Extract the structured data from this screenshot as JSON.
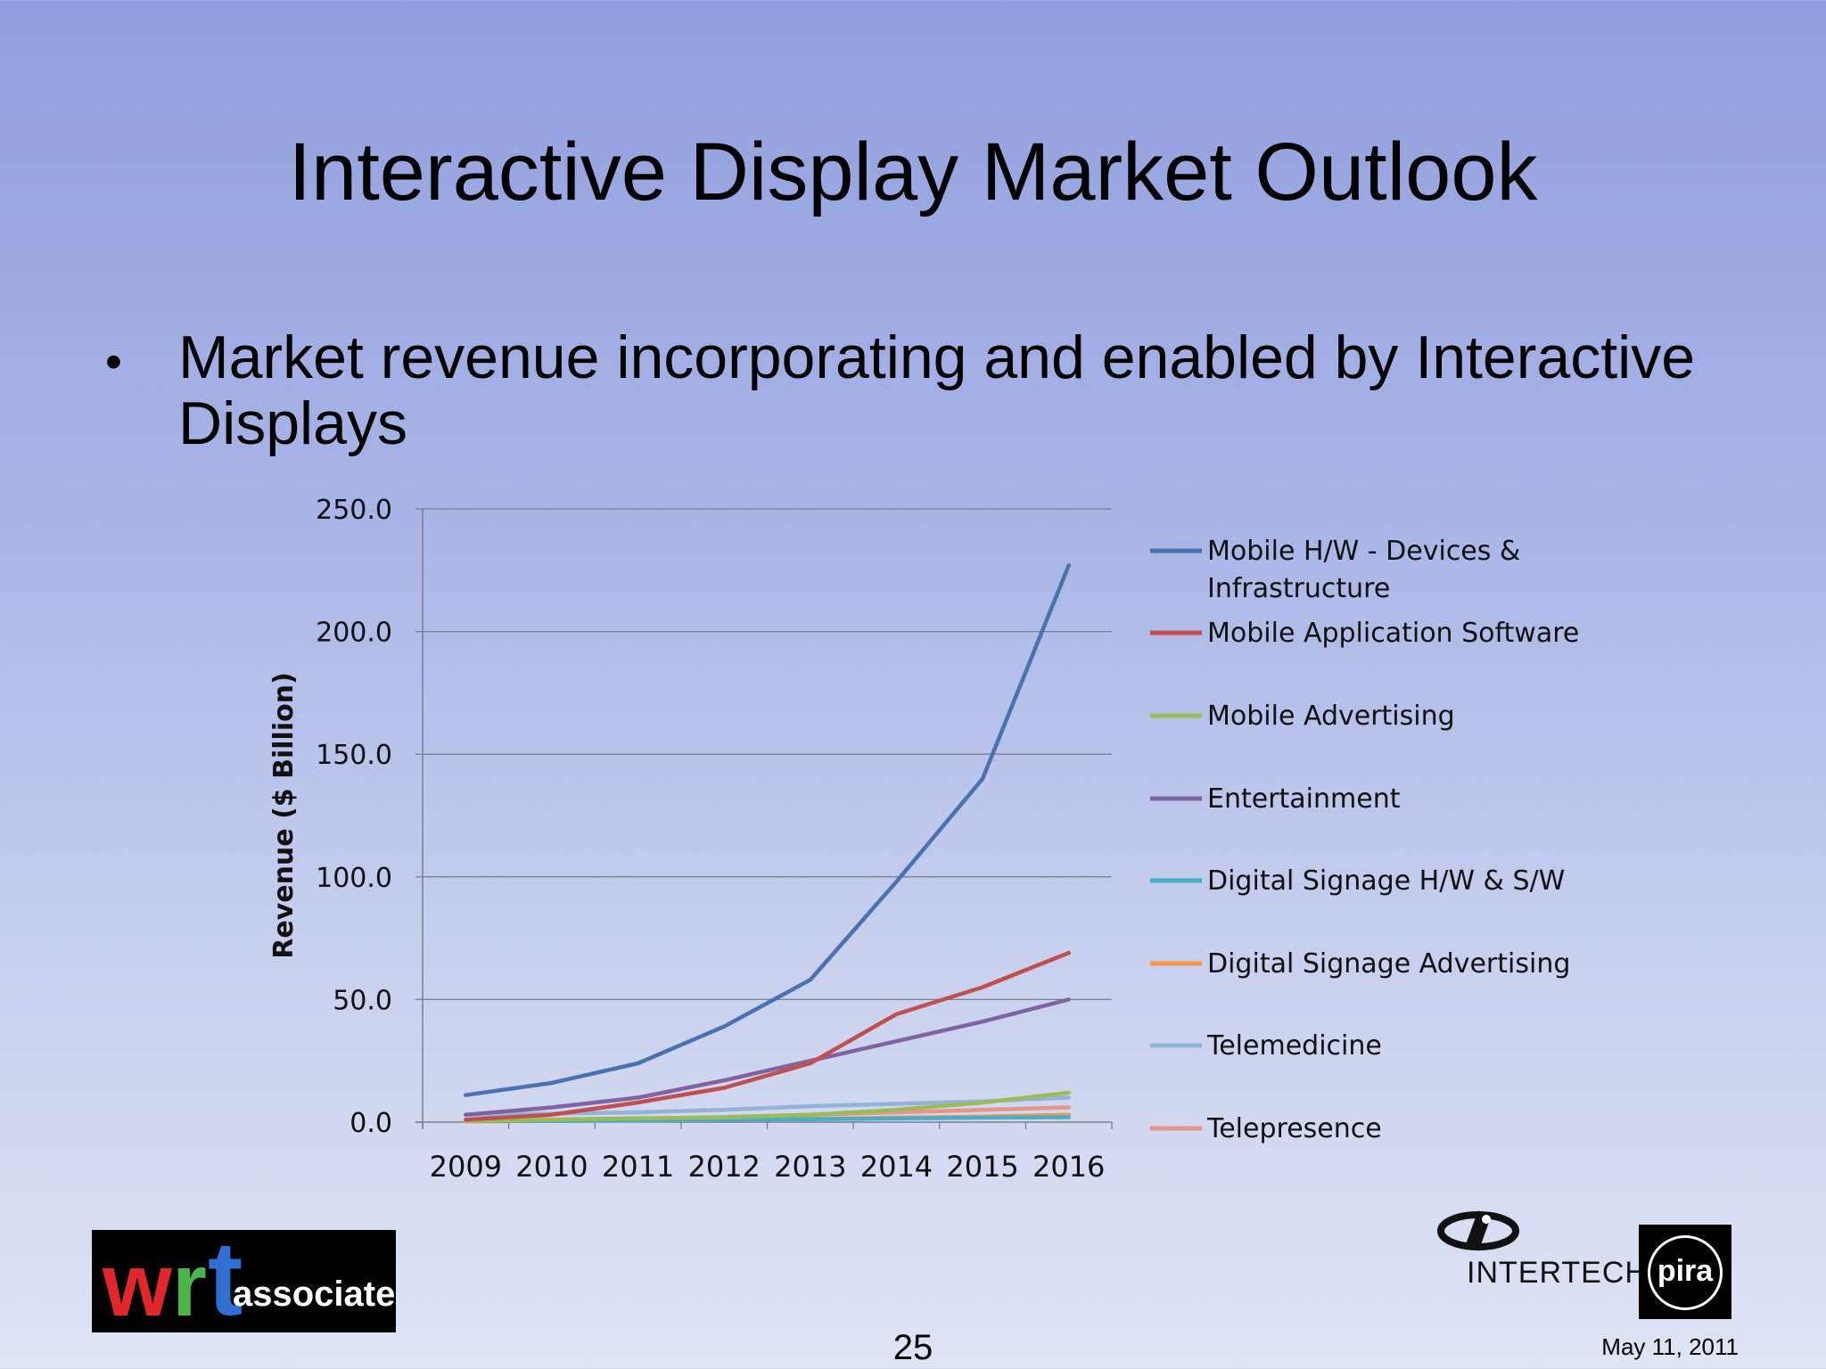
{
  "slide": {
    "title": "Interactive Display Market Outlook",
    "bullet": "Market revenue incorporating and enabled by Interactive Displays",
    "page_number": "25",
    "date": "May 11, 2011",
    "logos": {
      "left": "wrt associates",
      "wrt_letters": [
        "w",
        "r",
        "t"
      ],
      "wrt_suffix": "associates",
      "right_brand": "INTERTECH",
      "right_badge": "pira"
    }
  },
  "chart_data": {
    "type": "line",
    "title": "",
    "xlabel": "",
    "ylabel": "Revenue ($ Billion)",
    "categories": [
      "2009",
      "2010",
      "2011",
      "2012",
      "2013",
      "2014",
      "2015",
      "2016"
    ],
    "ylim": [
      0,
      250
    ],
    "yticks": [
      0,
      50,
      100,
      150,
      200,
      250
    ],
    "ytick_labels": [
      "0.0",
      "50.0",
      "100.0",
      "150.0",
      "200.0",
      "250.0"
    ],
    "grid": true,
    "legend_position": "right",
    "series": [
      {
        "name": "Mobile H/W - Devices & Infrastructure",
        "color": "#4a72b0",
        "values": [
          11,
          16,
          24,
          39,
          58,
          98,
          140,
          227
        ]
      },
      {
        "name": "Mobile Application Software",
        "color": "#c0504d",
        "values": [
          1,
          3,
          8,
          14,
          24,
          44,
          55,
          69
        ]
      },
      {
        "name": "Mobile Advertising",
        "color": "#9bbb59",
        "values": [
          0.5,
          1,
          1.5,
          2,
          3,
          5,
          8,
          12
        ]
      },
      {
        "name": "Entertainment",
        "color": "#8064a2",
        "values": [
          3,
          6,
          10,
          17,
          25,
          33,
          41,
          50
        ]
      },
      {
        "name": "Digital Signage H/W & S/W",
        "color": "#4bacc6",
        "values": [
          0.5,
          0.5,
          0.7,
          1,
          1.2,
          1.5,
          1.8,
          2
        ]
      },
      {
        "name": "Digital Signage Advertising",
        "color": "#f79646",
        "values": [
          0.3,
          0.5,
          0.7,
          1,
          1.3,
          1.8,
          2.3,
          3
        ]
      },
      {
        "name": "Telemedicine",
        "color": "#95b3d7",
        "values": [
          3,
          3.5,
          4,
          5,
          6.5,
          7.5,
          8.5,
          10
        ]
      },
      {
        "name": "Telepresence",
        "color": "#e6958a",
        "values": [
          0.5,
          1,
          1.5,
          2,
          3,
          4,
          5,
          6
        ]
      }
    ]
  }
}
